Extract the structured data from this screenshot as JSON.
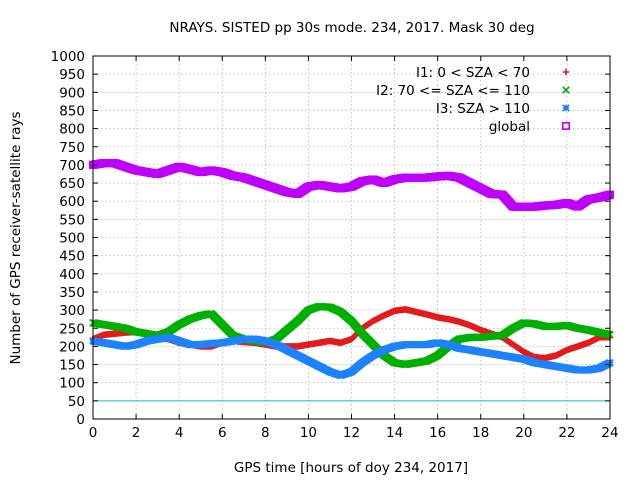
{
  "chart_data": {
    "type": "scatter",
    "title": "NRAYS. SISTED pp 30s mode. 234, 2017. Mask 30 deg",
    "xlabel": "GPS time [hours of doy 234, 2017]",
    "ylabel": "Number of GPS receiver-satellite rays",
    "xlim": [
      0,
      24
    ],
    "ylim": [
      0,
      1000
    ],
    "xticks": [
      0,
      2,
      4,
      6,
      8,
      10,
      12,
      14,
      16,
      18,
      20,
      22,
      24
    ],
    "yticks": [
      0,
      50,
      100,
      150,
      200,
      250,
      300,
      350,
      400,
      450,
      500,
      550,
      600,
      650,
      700,
      750,
      800,
      850,
      900,
      950,
      1000
    ],
    "grid": true,
    "legend_position": "top-right",
    "threshold_line": {
      "y": 50,
      "color": "#00c0c0"
    },
    "series": [
      {
        "name": "I1: 0 < SZA < 70",
        "marker": "+",
        "color": "#e41a1c",
        "x": [
          0,
          0.5,
          1,
          1.5,
          2,
          2.5,
          3,
          3.5,
          4,
          4.5,
          5,
          5.5,
          6,
          6.5,
          7,
          7.5,
          8,
          8.5,
          9,
          9.5,
          10,
          10.5,
          11,
          11.5,
          12,
          12.5,
          13,
          13.5,
          14,
          14.5,
          15,
          15.5,
          16,
          16.5,
          17,
          17.5,
          18,
          18.5,
          19,
          19.5,
          20,
          20.5,
          21,
          21.5,
          22,
          22.5,
          23,
          23.5,
          24
        ],
        "y": [
          220,
          232,
          235,
          238,
          240,
          235,
          225,
          220,
          210,
          205,
          200,
          200,
          210,
          215,
          212,
          210,
          205,
          200,
          200,
          200,
          205,
          210,
          215,
          210,
          220,
          250,
          270,
          285,
          298,
          302,
          295,
          288,
          280,
          275,
          268,
          258,
          245,
          235,
          225,
          205,
          185,
          170,
          168,
          175,
          190,
          200,
          210,
          225,
          225
        ]
      },
      {
        "name": "I2: 70 <= SZA <= 110",
        "marker": "x",
        "color": "#00b000",
        "x": [
          0,
          0.5,
          1,
          1.5,
          2,
          2.5,
          3,
          3.5,
          4,
          4.5,
          5,
          5.5,
          6,
          6.5,
          7,
          7.5,
          8,
          8.5,
          9,
          9.5,
          10,
          10.5,
          11,
          11.5,
          12,
          12.5,
          13,
          13.5,
          14,
          14.5,
          15,
          15.5,
          16,
          16.5,
          17,
          17.5,
          18,
          18.5,
          19,
          19.5,
          20,
          20.5,
          21,
          21.5,
          22,
          22.5,
          23,
          23.5,
          24
        ],
        "y": [
          265,
          260,
          255,
          250,
          240,
          235,
          230,
          240,
          260,
          275,
          285,
          290,
          260,
          230,
          220,
          215,
          210,
          220,
          245,
          270,
          300,
          310,
          308,
          295,
          270,
          235,
          205,
          175,
          155,
          150,
          155,
          160,
          175,
          200,
          220,
          225,
          225,
          228,
          230,
          250,
          265,
          262,
          255,
          255,
          258,
          250,
          245,
          238,
          232
        ]
      },
      {
        "name": "I3: SZA > 110",
        "marker": "*",
        "color": "#1e82ff",
        "x": [
          0,
          0.5,
          1,
          1.5,
          2,
          2.5,
          3,
          3.5,
          4,
          4.5,
          5,
          5.5,
          6,
          6.5,
          7,
          7.5,
          8,
          8.5,
          9,
          9.5,
          10,
          10.5,
          11,
          11.5,
          12,
          12.5,
          13,
          13.5,
          14,
          14.5,
          15,
          15.5,
          16,
          16.5,
          17,
          17.5,
          18,
          18.5,
          19,
          19.5,
          20,
          20.5,
          21,
          21.5,
          22,
          22.5,
          23,
          23.5,
          24
        ],
        "y": [
          215,
          210,
          205,
          200,
          205,
          215,
          220,
          225,
          215,
          205,
          205,
          208,
          210,
          215,
          220,
          220,
          215,
          205,
          190,
          175,
          160,
          145,
          130,
          120,
          130,
          155,
          175,
          190,
          200,
          205,
          205,
          205,
          210,
          205,
          195,
          190,
          185,
          180,
          175,
          170,
          165,
          155,
          150,
          145,
          140,
          135,
          135,
          140,
          155
        ]
      },
      {
        "name": "global",
        "marker": "square",
        "color": "#c000ff",
        "x": [
          0,
          0.5,
          1,
          1.5,
          2,
          2.5,
          3,
          3.5,
          4,
          4.5,
          5,
          5.5,
          6,
          6.5,
          7,
          7.5,
          8,
          8.5,
          9,
          9.5,
          10,
          10.5,
          11,
          11.5,
          12,
          12.5,
          13,
          13.5,
          14,
          14.5,
          15,
          15.5,
          16,
          16.5,
          17,
          17.5,
          18,
          18.5,
          19,
          19.5,
          20,
          20.5,
          21,
          21.5,
          22,
          22.5,
          23,
          23.5,
          24
        ],
        "y": [
          700,
          705,
          705,
          695,
          685,
          680,
          675,
          685,
          695,
          688,
          680,
          685,
          680,
          670,
          665,
          655,
          645,
          635,
          625,
          620,
          640,
          645,
          640,
          635,
          640,
          655,
          660,
          650,
          660,
          665,
          665,
          665,
          668,
          670,
          665,
          650,
          635,
          620,
          618,
          585,
          585,
          585,
          588,
          590,
          595,
          585,
          605,
          610,
          618
        ]
      }
    ]
  }
}
